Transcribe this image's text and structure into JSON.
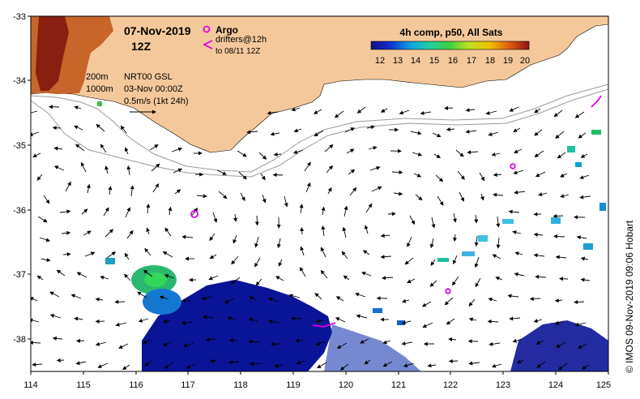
{
  "map": {
    "date": "07-Nov-2019",
    "time": "12Z",
    "argo_label": "Argo",
    "drifters_label": "drifters@12h",
    "drifters_to": "to 08/11 12Z",
    "iso_200": "200m",
    "iso_1000": "1000m",
    "product": "NRT00 GSL",
    "product_date": "03-Nov 00:00Z",
    "scale_label": "0.5m/s (1kt 24h)",
    "colorbar_title": "4h comp, p50, All Sats",
    "colorbar_ticks": [
      "12",
      "13",
      "14",
      "15",
      "16",
      "17",
      "18",
      "19",
      "20"
    ],
    "copyright": "© IMOS 09-Nov-2019 09:06 Hobart",
    "x_ticks": [
      "114",
      "115",
      "116",
      "117",
      "118",
      "119",
      "120",
      "121",
      "122",
      "123",
      "124",
      "125"
    ],
    "y_ticks": [
      "-33",
      "-34",
      "-35",
      "-36",
      "-37",
      "-38"
    ],
    "colors": {
      "land": "#f5c89b",
      "argo": "#e000e0",
      "sst_cold": "#0a1496",
      "sst_warm": "#c84614"
    }
  }
}
